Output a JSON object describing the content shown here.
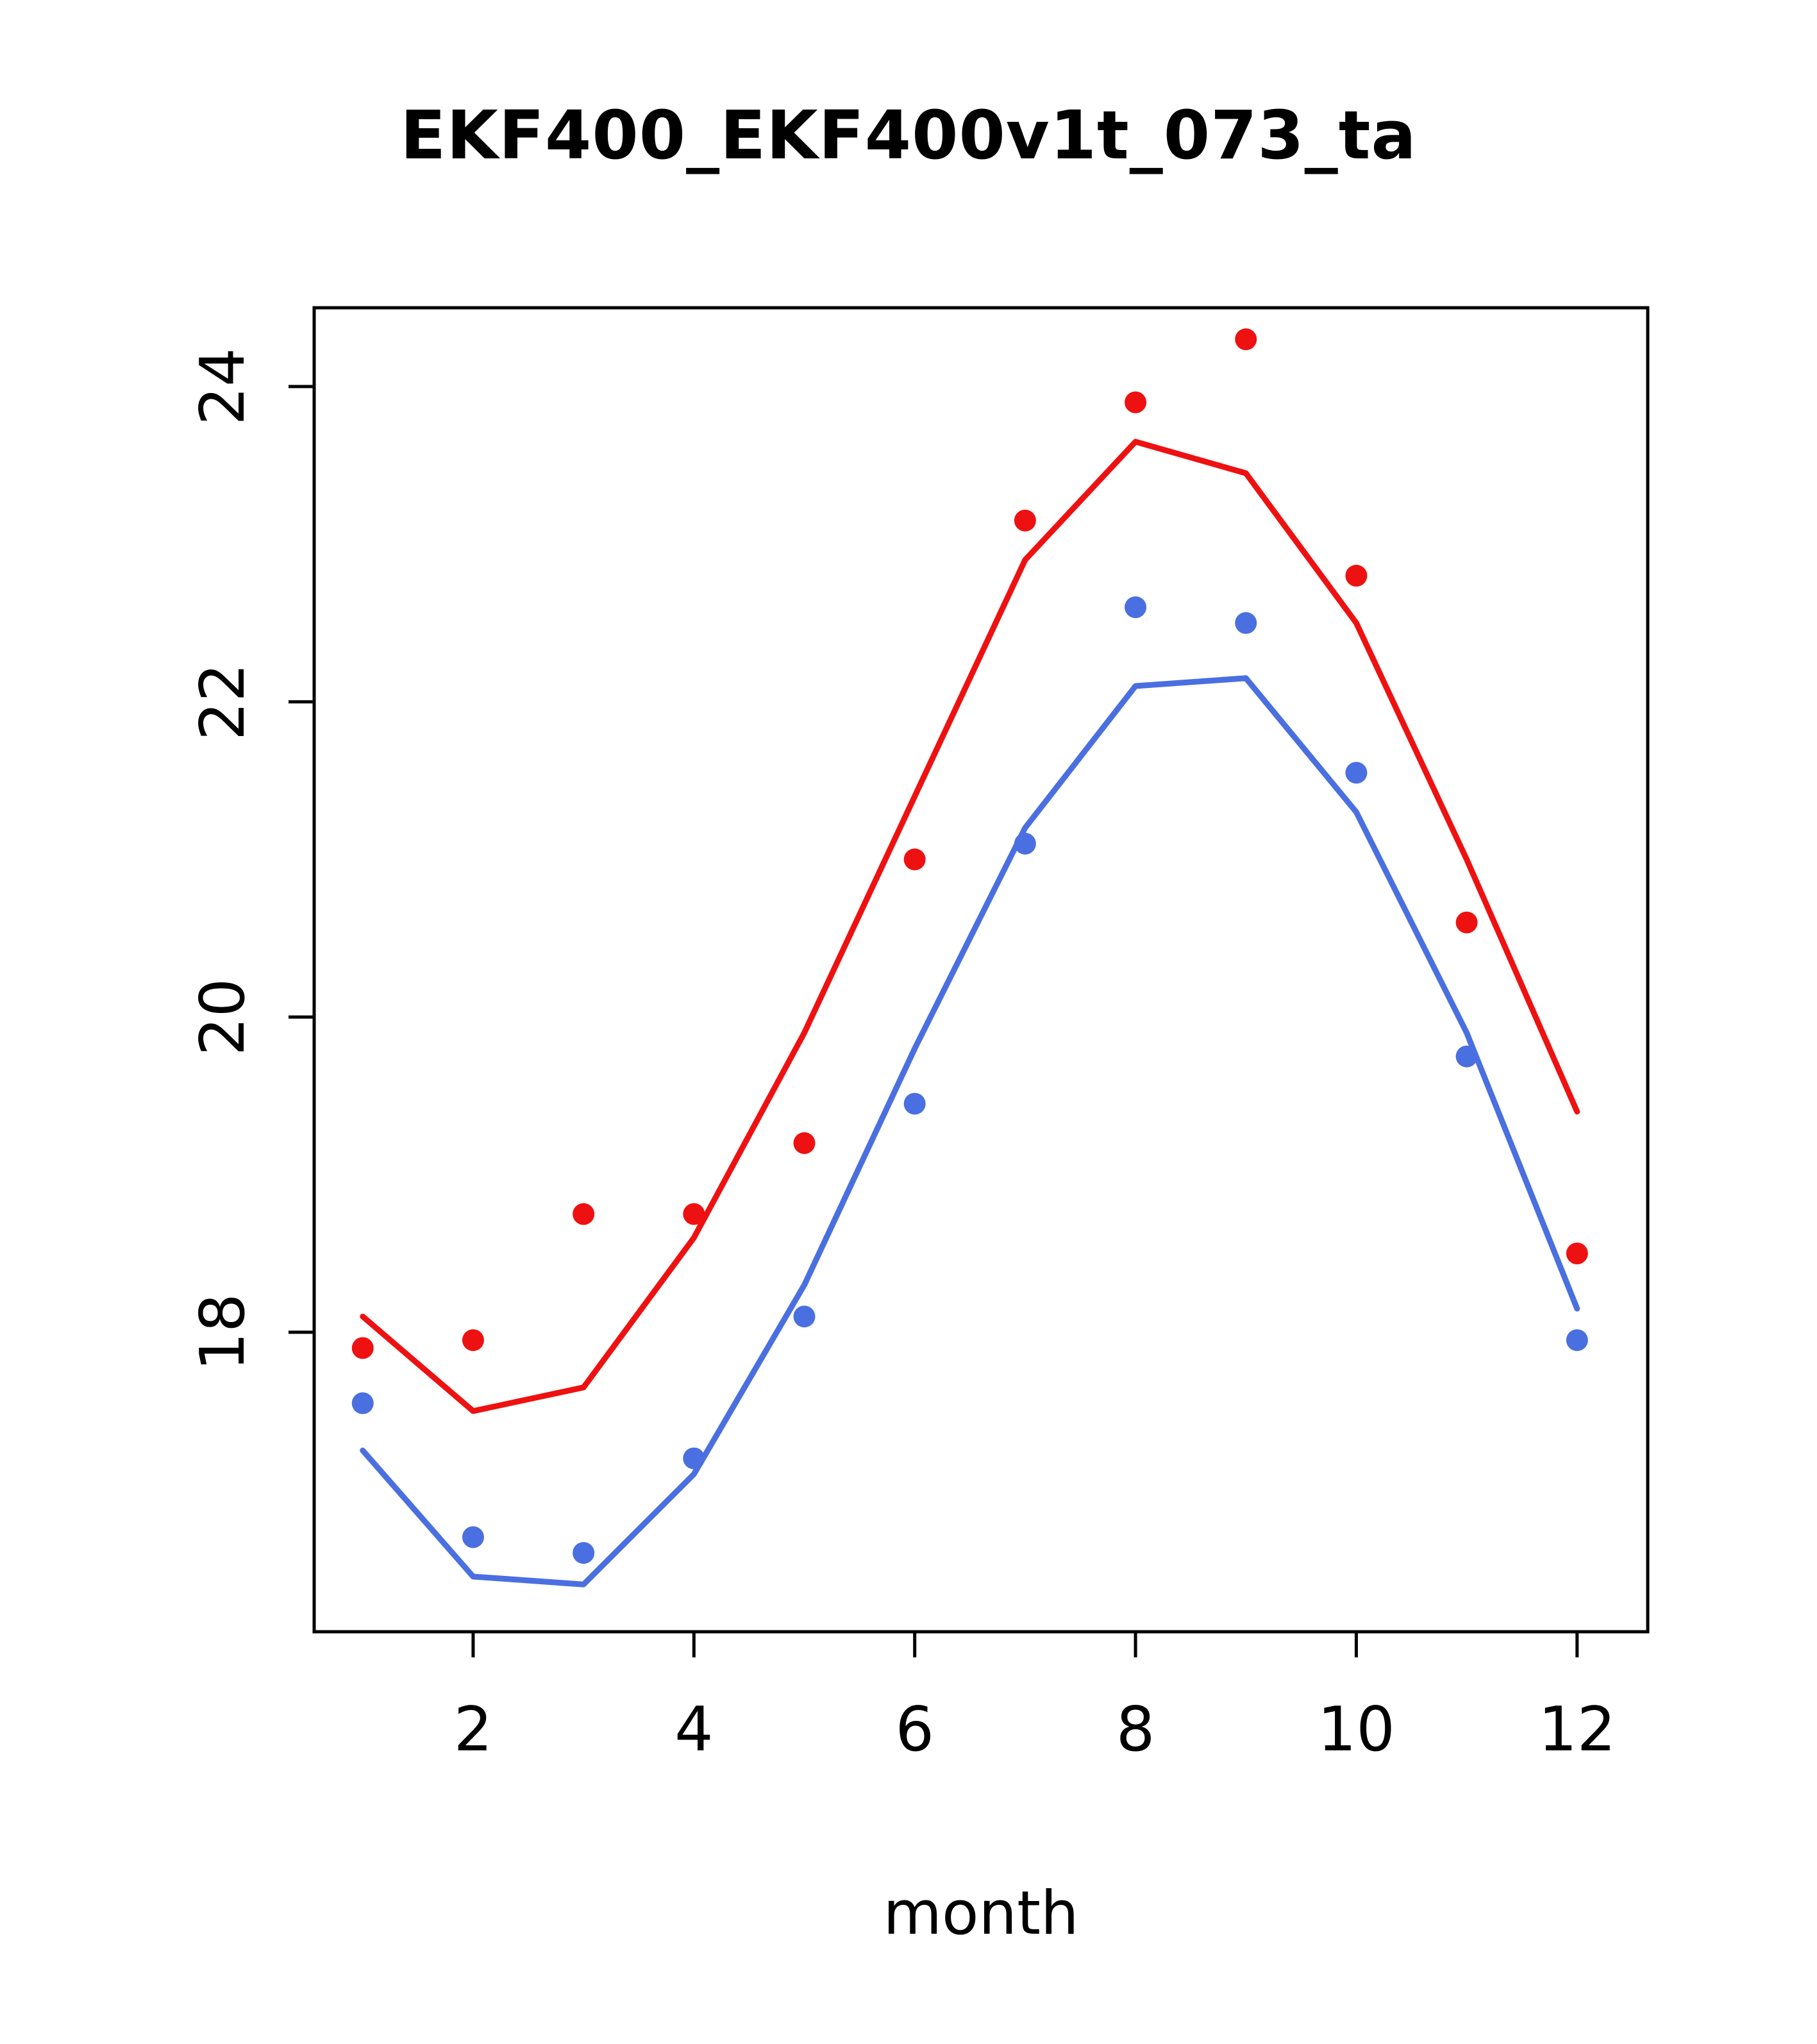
{
  "chart_data": {
    "type": "line",
    "title": "EKF400_EKF400v1t_073_ta",
    "xlabel": "month",
    "ylabel": "",
    "x": [
      1,
      2,
      3,
      4,
      5,
      6,
      7,
      8,
      9,
      10,
      11,
      12
    ],
    "xticks": [
      2,
      4,
      6,
      8,
      10,
      12
    ],
    "yticks": [
      18,
      20,
      22,
      24
    ],
    "xlim": [
      0.56,
      12.64
    ],
    "ylim": [
      16.1,
      24.5
    ],
    "grid": false,
    "legend": "none",
    "colors": {
      "red": "#ee1111",
      "blue": "#4a6fe0",
      "axis": "#000000"
    },
    "series": [
      {
        "name": "red-line",
        "style": "line",
        "color": "#ee1111",
        "values": [
          18.1,
          17.5,
          17.65,
          18.6,
          19.9,
          21.4,
          22.9,
          23.65,
          23.45,
          22.5,
          21.0,
          19.4
        ]
      },
      {
        "name": "blue-line",
        "style": "line",
        "color": "#4a6fe0",
        "values": [
          17.25,
          16.45,
          16.4,
          17.1,
          18.3,
          19.8,
          21.2,
          22.1,
          22.15,
          21.3,
          19.9,
          18.15
        ]
      },
      {
        "name": "red-points",
        "style": "points",
        "color": "#ee1111",
        "values": [
          17.9,
          17.95,
          18.75,
          18.75,
          19.2,
          21.0,
          23.15,
          23.9,
          24.3,
          22.8,
          20.6,
          18.5
        ]
      },
      {
        "name": "blue-points",
        "style": "points",
        "color": "#4a6fe0",
        "values": [
          17.55,
          16.7,
          16.6,
          17.2,
          18.1,
          19.45,
          21.1,
          22.6,
          22.5,
          21.55,
          19.75,
          17.95
        ]
      }
    ]
  }
}
